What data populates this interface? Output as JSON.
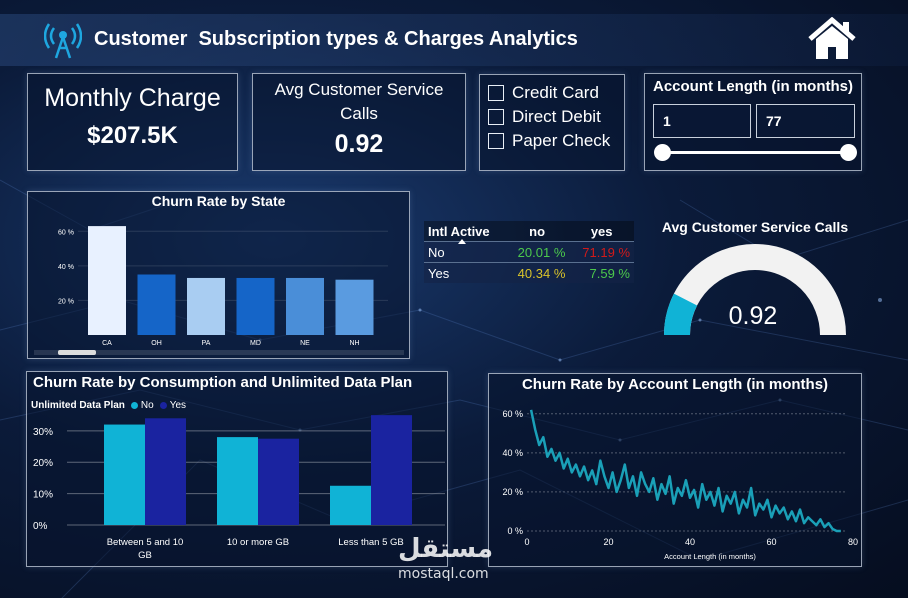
{
  "header": {
    "title": "Customer  Subscription types & Charges Analytics",
    "logo_icon": "wifi-antenna-icon",
    "home_icon": "home-icon"
  },
  "kpis": {
    "monthly_charge": {
      "label": "Monthly Charge",
      "value": "$207.5K"
    },
    "avg_calls": {
      "label_line1": "Avg Customer Service",
      "label_line2": "Calls",
      "value": "0.92"
    }
  },
  "payment_filter": {
    "options": [
      "Credit Card",
      "Direct Debit",
      "Paper Check"
    ]
  },
  "account_length_filter": {
    "label": "Account Length (in months)",
    "min": "1",
    "max": "77",
    "slider_range": [
      1,
      77
    ]
  },
  "churn_by_state": {
    "title": "Churn Rate by State",
    "chart_data": {
      "type": "bar",
      "categories": [
        "CA",
        "OH",
        "PA",
        "MD",
        "NE",
        "NH"
      ],
      "values": [
        63,
        35,
        33,
        33,
        33,
        32
      ],
      "ytick_labels": [
        "60 %",
        "40 %",
        "20 %"
      ],
      "yticks": [
        60,
        40,
        20
      ],
      "ylim": [
        0,
        70
      ],
      "colors": [
        "#e8f1ff",
        "#1565c8",
        "#a9cdf2",
        "#1565c8",
        "#4a8ed8",
        "#5a9be0"
      ]
    }
  },
  "intl_matrix": {
    "header": [
      "Intl Active",
      "no",
      "yes"
    ],
    "rows": [
      {
        "label": "No",
        "no": "20.01 %",
        "yes": "71.19 %"
      },
      {
        "label": "Yes",
        "no": "40.34 %",
        "yes": "7.59 %"
      }
    ],
    "colors": {
      "green": "#4cc94c",
      "red": "#d11a1a",
      "amber": "#d8c22a"
    }
  },
  "gauge": {
    "title": "Avg Customer Service Calls",
    "value": "0.92",
    "fill_fraction": 0.15,
    "fill_color": "#10b3d6"
  },
  "churn_by_consumption": {
    "title": "Churn Rate by Consumption and Unlimited Data Plan",
    "legend_title": "Unlimited Data Plan",
    "chart_data": {
      "type": "bar",
      "categories": [
        "Between 5 and 10 GB",
        "10 or more GB",
        "Less than 5 GB"
      ],
      "category_lines": [
        [
          "Between 5 and 10",
          "GB"
        ],
        [
          "10 or more GB"
        ],
        [
          "Less than 5 GB"
        ]
      ],
      "series": [
        {
          "name": "No",
          "values": [
            32,
            28,
            12.5
          ],
          "color": "#10b3d6"
        },
        {
          "name": "Yes",
          "values": [
            34,
            27.5,
            35
          ],
          "color": "#1a23a0"
        }
      ],
      "ytick_labels": [
        "30%",
        "20%",
        "10%",
        "0%"
      ],
      "yticks": [
        30,
        20,
        10,
        0
      ],
      "ylim": [
        0,
        36
      ]
    }
  },
  "churn_by_account_length": {
    "title": "Churn Rate by Account Length (in months)",
    "chart_data": {
      "type": "line",
      "xlabel": "Account Length (in months)",
      "xticks": [
        0,
        20,
        40,
        60,
        80
      ],
      "yticks": [
        0,
        20,
        40,
        60
      ],
      "ytick_labels": [
        "0 %",
        "20 %",
        "40 %",
        "60 %"
      ],
      "xlim": [
        0,
        80
      ],
      "ylim": [
        0,
        65
      ],
      "color": "#1aa0b8",
      "x": [
        1,
        2,
        3,
        4,
        5,
        6,
        7,
        8,
        9,
        10,
        11,
        12,
        13,
        14,
        15,
        16,
        17,
        18,
        19,
        20,
        21,
        22,
        23,
        24,
        25,
        26,
        27,
        28,
        29,
        30,
        31,
        32,
        33,
        34,
        35,
        36,
        37,
        38,
        39,
        40,
        41,
        42,
        43,
        44,
        45,
        46,
        47,
        48,
        49,
        50,
        51,
        52,
        53,
        54,
        55,
        56,
        57,
        58,
        59,
        60,
        61,
        62,
        63,
        64,
        65,
        66,
        67,
        68,
        69,
        70,
        71,
        72,
        73,
        74,
        75,
        76,
        77
      ],
      "y": [
        62,
        52,
        44,
        48,
        38,
        42,
        36,
        40,
        32,
        37,
        30,
        34,
        28,
        33,
        26,
        31,
        24,
        36,
        28,
        22,
        30,
        20,
        26,
        34,
        22,
        28,
        18,
        30,
        24,
        20,
        27,
        16,
        24,
        19,
        28,
        14,
        22,
        18,
        26,
        17,
        21,
        12,
        24,
        16,
        20,
        13,
        22,
        10,
        18,
        14,
        20,
        9,
        16,
        12,
        22,
        8,
        14,
        11,
        16,
        7,
        13,
        9,
        12,
        6,
        10,
        5,
        11,
        4,
        7,
        5,
        3,
        6,
        2,
        4,
        1,
        0,
        0
      ]
    }
  },
  "watermark": {
    "arabic": "مستقل",
    "latin": "mostaql.com"
  }
}
